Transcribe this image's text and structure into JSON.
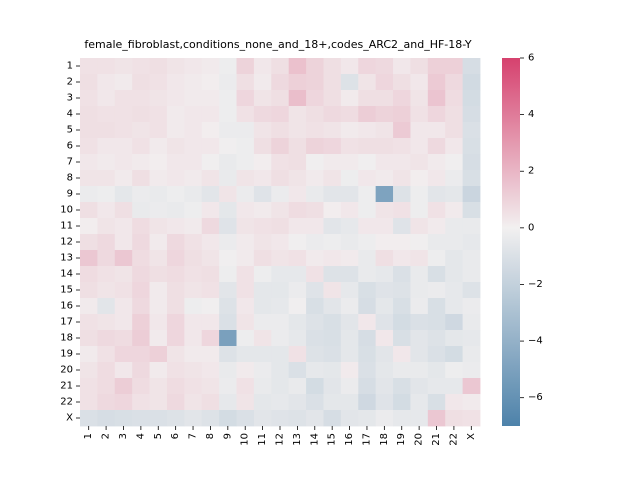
{
  "chart_data": {
    "type": "heatmap",
    "title": "female_fibroblast,conditions_none_and_18+,codes_ARC2_and_HF-18-Y",
    "xlabel": "",
    "ylabel": "",
    "rows": [
      "1",
      "2",
      "3",
      "4",
      "5",
      "6",
      "7",
      "8",
      "9",
      "10",
      "11",
      "12",
      "13",
      "14",
      "15",
      "16",
      "17",
      "18",
      "19",
      "20",
      "21",
      "22",
      "X"
    ],
    "cols": [
      "1",
      "2",
      "3",
      "4",
      "5",
      "6",
      "7",
      "8",
      "9",
      "10",
      "11",
      "12",
      "13",
      "14",
      "15",
      "16",
      "17",
      "18",
      "19",
      "20",
      "21",
      "22",
      "X"
    ],
    "colorbar": {
      "vmin": -7,
      "vmax": 6,
      "ticks": [
        6,
        4,
        2,
        0,
        -2,
        -4,
        -6
      ],
      "neg_color": "#4d82aa",
      "pos_color": "#d6416e",
      "mid_color": "#f2f0f0"
    },
    "values": [
      [
        0.5,
        0.5,
        0.4,
        0.5,
        0.6,
        0.4,
        0.3,
        0.2,
        -0.2,
        1.0,
        0.3,
        0.6,
        1.6,
        1.0,
        0.6,
        0.3,
        0.9,
        0.8,
        0.3,
        0.6,
        1.1,
        1.1,
        -1.2
      ],
      [
        0.6,
        0.3,
        0.2,
        0.6,
        0.5,
        0.3,
        0.2,
        0.1,
        -0.3,
        0.6,
        0.2,
        0.8,
        1.1,
        1.0,
        0.6,
        -0.9,
        0.4,
        0.9,
        0.6,
        0.3,
        1.3,
        0.8,
        -1.4
      ],
      [
        0.5,
        0.3,
        0.5,
        0.5,
        0.4,
        0.3,
        0.2,
        0.2,
        -0.2,
        0.9,
        0.4,
        0.6,
        1.7,
        0.9,
        0.6,
        0.2,
        0.6,
        0.6,
        0.9,
        0.4,
        1.5,
        0.7,
        -1.3
      ],
      [
        0.6,
        0.5,
        0.5,
        0.6,
        0.5,
        0.2,
        0.3,
        0.3,
        -0.2,
        0.5,
        0.8,
        0.9,
        0.4,
        0.6,
        0.8,
        0.7,
        1.2,
        1.0,
        1.1,
        0.5,
        0.9,
        0.6,
        -1.2
      ],
      [
        0.6,
        0.6,
        0.5,
        0.4,
        0.5,
        0.2,
        0.3,
        0.1,
        -0.3,
        -0.3,
        0.4,
        0.6,
        0.4,
        0.5,
        0.4,
        0.2,
        0.3,
        0.4,
        1.3,
        0.3,
        0.3,
        0.6,
        -1.0
      ],
      [
        0.5,
        0.3,
        0.3,
        0.5,
        0.2,
        0.4,
        0.3,
        0.3,
        -0.1,
        -0.2,
        0.6,
        1.0,
        0.6,
        1.0,
        0.9,
        0.5,
        0.6,
        0.6,
        0.5,
        0.3,
        0.8,
        0.3,
        -1.1
      ],
      [
        0.3,
        0.2,
        0.3,
        0.2,
        0.1,
        0.3,
        0.3,
        -0.1,
        -0.4,
        -0.2,
        0.1,
        0.5,
        0.6,
        -0.1,
        0.2,
        0.2,
        -0.1,
        0.3,
        0.3,
        0.4,
        0.2,
        -0.1,
        -1.2
      ],
      [
        0.4,
        0.4,
        0.2,
        0.6,
        0.2,
        0.3,
        0.2,
        0.4,
        -0.4,
        0.4,
        0.3,
        0.6,
        0.4,
        0.2,
        0.4,
        -0.2,
        0.3,
        0.2,
        0.4,
        0.1,
        0.3,
        -0.3,
        -1.1
      ],
      [
        -0.3,
        -0.2,
        -0.6,
        -0.3,
        -0.4,
        -0.2,
        -0.4,
        -0.7,
        0.4,
        -0.3,
        -0.8,
        -0.3,
        0.3,
        -0.4,
        -0.7,
        -0.7,
        -0.2,
        -4.9,
        -0.9,
        -0.2,
        -0.7,
        -0.6,
        -1.7
      ],
      [
        0.6,
        0.3,
        0.6,
        -0.4,
        -0.3,
        -0.4,
        -0.2,
        0.3,
        -0.6,
        0.3,
        0.2,
        0.4,
        0.7,
        0.6,
        0.1,
        0.3,
        -0.2,
        0.4,
        0.5,
        -0.2,
        0.5,
        0.2,
        -1.1
      ],
      [
        0.1,
        0.4,
        0.3,
        0.7,
        0.4,
        0.3,
        0.2,
        0.8,
        -0.8,
        0.4,
        0.5,
        0.6,
        0.3,
        0.3,
        -0.7,
        -0.5,
        0.3,
        0.3,
        -0.8,
        0.4,
        0.2,
        -0.4,
        -0.4
      ],
      [
        0.6,
        0.8,
        0.3,
        0.8,
        0.2,
        0.8,
        0.5,
        0.3,
        -0.3,
        0.2,
        0.4,
        0.3,
        -0.1,
        -0.3,
        -0.2,
        -0.4,
        -0.2,
        0.1,
        0.1,
        -0.1,
        -0.4,
        -0.4,
        -0.5
      ],
      [
        1.4,
        0.8,
        1.4,
        0.7,
        0.4,
        0.9,
        0.6,
        0.4,
        -0.1,
        0.2,
        0.6,
        0.4,
        0.5,
        0.2,
        0.3,
        0.2,
        -0.4,
        0.6,
        0.3,
        0.4,
        -0.2,
        -0.6,
        -0.4
      ],
      [
        0.7,
        0.5,
        0.4,
        0.8,
        0.6,
        0.7,
        0.5,
        0.6,
        -0.2,
        0.5,
        -0.2,
        -0.5,
        -0.5,
        0.5,
        -0.9,
        -0.9,
        -0.4,
        -0.5,
        -1.0,
        -0.4,
        -1.1,
        -0.6,
        -0.4
      ],
      [
        0.6,
        0.4,
        0.5,
        0.9,
        0.2,
        0.6,
        0.4,
        0.5,
        -0.7,
        0.5,
        -0.6,
        -0.6,
        -0.3,
        -0.8,
        0.4,
        -0.5,
        -1.1,
        -0.8,
        -0.9,
        -0.4,
        -0.3,
        -0.5,
        -0.9
      ],
      [
        0.2,
        -0.7,
        0.3,
        0.8,
        0.2,
        0.6,
        -0.2,
        -0.1,
        -0.9,
        0.3,
        -0.6,
        -0.5,
        -0.1,
        -1.1,
        -0.7,
        -0.3,
        -1.2,
        -0.6,
        -1.1,
        -0.3,
        -1.1,
        -0.5,
        -0.3
      ],
      [
        0.5,
        0.4,
        0.3,
        1.1,
        0.3,
        0.9,
        0.3,
        0.3,
        -1.0,
        0.4,
        -0.3,
        -0.3,
        -0.6,
        -0.9,
        -1.1,
        -0.7,
        0.3,
        -0.8,
        -1.3,
        -1.0,
        -1.1,
        -1.5,
        -0.4
      ],
      [
        0.6,
        0.8,
        0.7,
        1.2,
        0.2,
        0.9,
        0.3,
        0.9,
        -5.1,
        -0.2,
        0.4,
        -0.3,
        -0.5,
        -1.0,
        -1.1,
        -0.6,
        -1.2,
        0.3,
        -1.1,
        -0.7,
        -0.9,
        -0.6,
        -0.5
      ],
      [
        0.2,
        0.5,
        0.9,
        0.9,
        1.1,
        0.4,
        0.2,
        0.2,
        -0.9,
        -0.6,
        -0.6,
        -0.6,
        0.5,
        -0.9,
        -1.0,
        -0.6,
        -1.1,
        -0.7,
        0.3,
        -0.7,
        -1.0,
        -1.3,
        -0.4
      ],
      [
        0.4,
        0.7,
        0.3,
        0.8,
        0.2,
        0.5,
        0.4,
        0.3,
        -0.4,
        0.2,
        -0.3,
        -0.6,
        -1.0,
        -0.5,
        -0.6,
        0.2,
        -1.0,
        -0.6,
        -0.4,
        -0.4,
        -0.6,
        -0.2,
        -0.3
      ],
      [
        0.5,
        0.7,
        1.2,
        0.7,
        0.4,
        0.7,
        0.5,
        0.4,
        -0.3,
        0.5,
        -0.4,
        -0.6,
        -0.4,
        -1.3,
        -0.7,
        -0.3,
        -1.2,
        -0.7,
        -1.1,
        -0.7,
        -0.5,
        -0.5,
        1.4
      ],
      [
        0.5,
        0.8,
        0.9,
        0.5,
        0.4,
        0.8,
        0.4,
        0.6,
        -0.5,
        0.4,
        -0.6,
        -0.5,
        -0.7,
        -1.0,
        -0.6,
        -0.6,
        -1.5,
        -0.8,
        -1.3,
        -0.5,
        -1.1,
        0.3,
        0.2
      ],
      [
        -1.0,
        -1.2,
        -1.1,
        -1.0,
        -1.0,
        -0.9,
        -0.7,
        -0.9,
        -1.3,
        -1.0,
        -0.7,
        -0.8,
        -0.9,
        -0.7,
        -1.2,
        -0.7,
        -0.6,
        -0.3,
        -0.5,
        -0.5,
        1.4,
        0.6,
        0.5
      ]
    ]
  }
}
